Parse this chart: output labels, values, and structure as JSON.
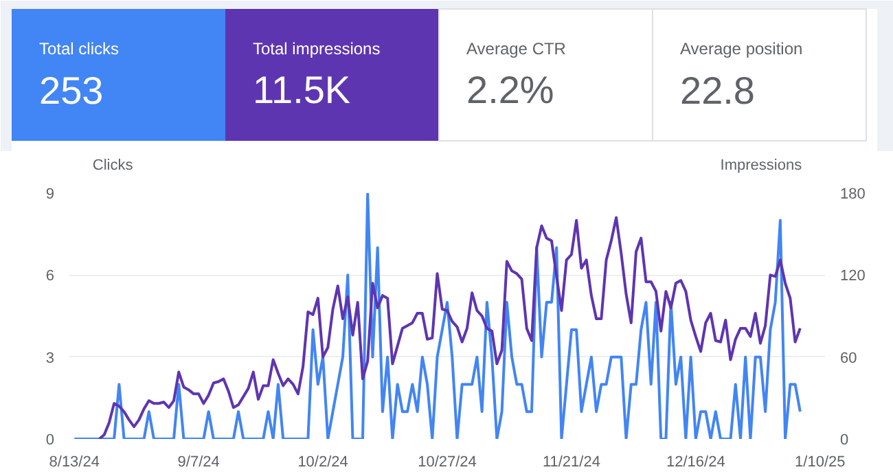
{
  "chart_data": [
    {
      "type": "other",
      "annotations": [
        "Total clicks",
        "253",
        "Total impressions",
        "11.5K",
        "Average CTR",
        "2.2%",
        "Average position",
        "22.8"
      ]
    },
    {
      "type": "line",
      "ylabel": "Clicks",
      "y2label": "Impressions",
      "grid": "y",
      "marker": "none",
      "line_style": "solid",
      "xlim": [
        "2024-08-12",
        "2025-01-11"
      ],
      "ylim": [
        0,
        9
      ],
      "y2lim": [
        0,
        180
      ],
      "xticks": [
        {
          "value": "2024-08-13",
          "label": "8/13/24"
        },
        {
          "value": "2024-09-07",
          "label": "9/7/24"
        },
        {
          "value": "2024-10-02",
          "label": "10/2/24"
        },
        {
          "value": "2024-10-27",
          "label": "10/27/24"
        },
        {
          "value": "2024-11-21",
          "label": "11/21/24"
        },
        {
          "value": "2024-12-16",
          "label": "12/16/24"
        },
        {
          "value": "2025-01-10",
          "label": "1/10/25"
        }
      ],
      "yticks": [
        0,
        3,
        6,
        9
      ],
      "y2ticks": [
        0,
        60,
        120,
        180
      ],
      "x": [
        "2024-08-13",
        "2024-08-14",
        "2024-08-15",
        "2024-08-16",
        "2024-08-17",
        "2024-08-18",
        "2024-08-19",
        "2024-08-20",
        "2024-08-21",
        "2024-08-22",
        "2024-08-23",
        "2024-08-24",
        "2024-08-25",
        "2024-08-26",
        "2024-08-27",
        "2024-08-28",
        "2024-08-29",
        "2024-08-30",
        "2024-08-31",
        "2024-09-01",
        "2024-09-02",
        "2024-09-03",
        "2024-09-04",
        "2024-09-05",
        "2024-09-06",
        "2024-09-07",
        "2024-09-08",
        "2024-09-09",
        "2024-09-10",
        "2024-09-11",
        "2024-09-12",
        "2024-09-13",
        "2024-09-14",
        "2024-09-15",
        "2024-09-16",
        "2024-09-17",
        "2024-09-18",
        "2024-09-19",
        "2024-09-20",
        "2024-09-21",
        "2024-09-22",
        "2024-09-23",
        "2024-09-24",
        "2024-09-25",
        "2024-09-26",
        "2024-09-27",
        "2024-09-28",
        "2024-09-29",
        "2024-09-30",
        "2024-10-01",
        "2024-10-02",
        "2024-10-03",
        "2024-10-04",
        "2024-10-05",
        "2024-10-06",
        "2024-10-07",
        "2024-10-08",
        "2024-10-09",
        "2024-10-10",
        "2024-10-11",
        "2024-10-12",
        "2024-10-13",
        "2024-10-14",
        "2024-10-15",
        "2024-10-16",
        "2024-10-17",
        "2024-10-18",
        "2024-10-19",
        "2024-10-20",
        "2024-10-21",
        "2024-10-22",
        "2024-10-23",
        "2024-10-24",
        "2024-10-25",
        "2024-10-26",
        "2024-10-27",
        "2024-10-28",
        "2024-10-29",
        "2024-10-30",
        "2024-10-31",
        "2024-11-01",
        "2024-11-02",
        "2024-11-03",
        "2024-11-04",
        "2024-11-05",
        "2024-11-06",
        "2024-11-07",
        "2024-11-08",
        "2024-11-09",
        "2024-11-10",
        "2024-11-11",
        "2024-11-12",
        "2024-11-13",
        "2024-11-14",
        "2024-11-15",
        "2024-11-16",
        "2024-11-17",
        "2024-11-18",
        "2024-11-19",
        "2024-11-20",
        "2024-11-21",
        "2024-11-22",
        "2024-11-23",
        "2024-11-24",
        "2024-11-25",
        "2024-11-26",
        "2024-11-27",
        "2024-11-28",
        "2024-11-29",
        "2024-11-30",
        "2024-12-01",
        "2024-12-02",
        "2024-12-03",
        "2024-12-04",
        "2024-12-05",
        "2024-12-06",
        "2024-12-07",
        "2024-12-08",
        "2024-12-09",
        "2024-12-10",
        "2024-12-11",
        "2024-12-12",
        "2024-12-13",
        "2024-12-14",
        "2024-12-15",
        "2024-12-16",
        "2024-12-17",
        "2024-12-18",
        "2024-12-19",
        "2024-12-20",
        "2024-12-21",
        "2024-12-22",
        "2024-12-23",
        "2024-12-24",
        "2024-12-25",
        "2024-12-26",
        "2024-12-27",
        "2024-12-28",
        "2024-12-29",
        "2024-12-30",
        "2024-12-31",
        "2025-01-01",
        "2025-01-02",
        "2025-01-03",
        "2025-01-04",
        "2025-01-05",
        "2025-01-06"
      ],
      "series": [
        {
          "color": "#4285f4",
          "values": [
            0,
            0,
            0,
            0,
            0,
            0,
            0,
            0,
            0,
            2,
            0,
            0,
            0,
            0,
            0,
            1,
            0,
            0,
            0,
            0,
            0,
            2,
            0,
            0,
            0,
            0,
            0,
            1,
            0,
            0,
            0,
            0,
            0,
            1,
            0,
            0,
            0,
            0,
            0,
            1,
            0,
            2,
            0,
            0,
            0,
            0,
            0,
            0,
            4,
            2,
            3,
            0,
            1,
            2,
            3,
            6,
            0,
            0,
            0,
            9,
            3,
            7,
            1,
            3,
            0,
            2,
            1,
            1,
            2,
            1,
            3,
            2,
            0,
            3,
            4,
            5,
            3,
            0,
            2,
            2,
            2,
            3,
            1,
            5,
            3,
            0,
            1,
            5,
            3,
            2,
            2,
            1,
            1,
            7,
            3,
            5,
            5,
            7,
            0,
            2,
            4,
            4,
            1,
            2,
            3,
            1,
            2,
            2,
            3,
            3,
            3,
            0,
            2,
            2,
            4,
            5,
            2,
            5,
            0,
            0,
            5,
            2,
            3,
            0,
            3,
            0,
            1,
            1,
            0,
            1,
            0,
            0,
            0,
            2,
            0,
            3,
            0,
            3,
            3,
            1,
            4,
            5,
            8,
            0,
            2,
            2,
            1
          ]
        },
        {
          "color": "#5e35b1",
          "axis": "y2",
          "values": [
            null,
            null,
            null,
            null,
            null,
            0,
            3,
            12,
            26,
            24,
            20,
            14,
            9,
            14,
            22,
            28,
            26,
            26,
            27,
            23,
            28,
            49,
            38,
            36,
            33,
            33,
            26,
            32,
            41,
            42,
            44,
            35,
            23,
            25,
            31,
            37,
            49,
            29,
            39,
            39,
            58,
            48,
            39,
            44,
            40,
            33,
            53,
            93,
            91,
            103,
            60,
            67,
            95,
            112,
            88,
            104,
            76,
            100,
            44,
            57,
            114,
            96,
            105,
            103,
            55,
            68,
            81,
            83,
            85,
            92,
            92,
            73,
            74,
            121,
            95,
            94,
            86,
            82,
            71,
            81,
            107,
            94,
            90,
            81,
            79,
            55,
            65,
            130,
            123,
            121,
            117,
            81,
            72,
            140,
            156,
            147,
            145,
            119,
            94,
            131,
            135,
            160,
            125,
            131,
            105,
            88,
            88,
            131,
            145,
            162,
            136,
            106,
            85,
            137,
            147,
            115,
            115,
            108,
            79,
            108,
            96,
            114,
            116,
            108,
            87,
            75,
            64,
            85,
            92,
            72,
            71,
            87,
            58,
            73,
            81,
            81,
            75,
            92,
            70,
            83,
            120,
            119,
            131,
            114,
            103,
            71,
            81
          ]
        }
      ]
    }
  ]
}
